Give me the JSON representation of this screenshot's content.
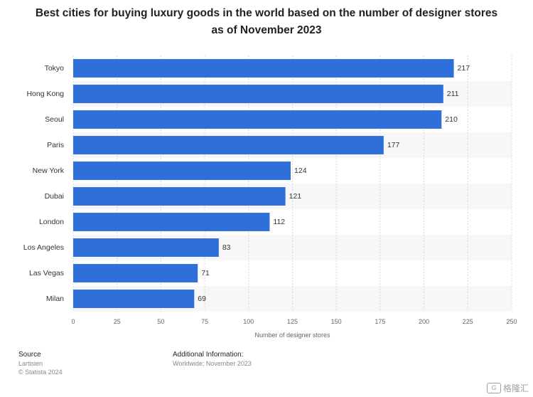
{
  "chart_data": {
    "type": "bar",
    "orientation": "horizontal",
    "title": "Best cities for buying luxury goods in the world based on the number of designer stores as of November 2023",
    "xlabel": "Number of designer stores",
    "ylabel": "",
    "categories": [
      "Tokyo",
      "Hong Kong",
      "Seoul",
      "Paris",
      "New York",
      "Dubai",
      "London",
      "Los Angeles",
      "Las Vegas",
      "Milan"
    ],
    "values": [
      217,
      211,
      210,
      177,
      124,
      121,
      112,
      83,
      71,
      69
    ],
    "xlim": [
      0,
      250
    ],
    "xticks": [
      0,
      25,
      50,
      75,
      100,
      125,
      150,
      175,
      200,
      225,
      250
    ],
    "grid": true,
    "bar_color": "#2f6fda",
    "band_color": "#f7f7f7",
    "grid_color": "#d9d9d9"
  },
  "footer": {
    "source_heading": "Source",
    "source_lines": [
      "Lartisien",
      "© Statista 2024"
    ],
    "info_heading": "Additional Information:",
    "info_line": "Worldwide; November 2023"
  },
  "watermark": {
    "icon_glyph": "G",
    "text": "格隆汇"
  }
}
